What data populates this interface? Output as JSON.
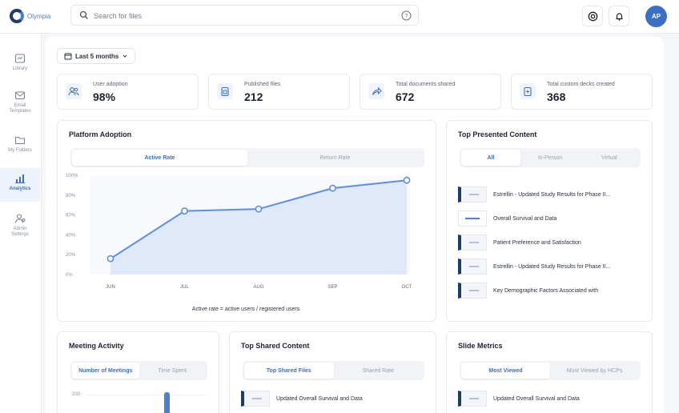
{
  "brand": {
    "name": "Olympia",
    "accent": "#3b6fc4"
  },
  "search": {
    "placeholder": "Search for files"
  },
  "user": {
    "initials": "AP"
  },
  "sidebar": {
    "items": [
      {
        "label": "Library",
        "icon": "library-icon"
      },
      {
        "label": "Email Templates",
        "icon": "mail-icon"
      },
      {
        "label": "My Folders",
        "icon": "folder-icon"
      },
      {
        "label": "Analytics",
        "icon": "analytics-icon",
        "active": true
      },
      {
        "label": "Admin Settings",
        "icon": "admin-icon"
      }
    ]
  },
  "filter": {
    "label": "Last 5 months"
  },
  "stats": [
    {
      "label": "User adoption",
      "value": "98%",
      "icon": "users-icon"
    },
    {
      "label": "Published files",
      "value": "212",
      "icon": "files-icon"
    },
    {
      "label": "Total documents shared",
      "value": "672",
      "icon": "share-icon"
    },
    {
      "label": "Total custom decks created",
      "value": "368",
      "icon": "deck-icon"
    }
  ],
  "platform_adoption": {
    "title": "Platform Adoption",
    "tabs": [
      "Active Rate",
      "Return Rate"
    ],
    "caption": "Active rate = active users / registered users"
  },
  "chart_data": {
    "type": "area",
    "categories": [
      "JUN",
      "JUL",
      "AUG",
      "SEP",
      "OCT"
    ],
    "values": [
      16,
      64,
      66,
      87,
      95
    ],
    "ylim": [
      0,
      100
    ],
    "yticks": [
      "0%",
      "20%",
      "40%",
      "60%",
      "80%",
      "100%"
    ],
    "grid": false
  },
  "top_presented": {
    "title": "Top Presented Content",
    "tabs": [
      "All",
      "In-Person",
      "Virtual"
    ],
    "items": [
      "Estrellin - Updated Study Results for Phase II...",
      "Overall Survival and Data",
      "Patient Preference and Satisfaction",
      "Estrellin - Updated Study Results for Phase II...",
      "Key Demographic Factors Associated with"
    ]
  },
  "meeting_activity": {
    "title": "Meeting Activity",
    "tabs": [
      "Number of Meetings",
      "Time Spent"
    ],
    "axis_top": "200"
  },
  "top_shared": {
    "title": "Top Shared Content",
    "tabs": [
      "Top Shared Files",
      "Shared Rate"
    ],
    "items": [
      "Updated Overall Survival and Data"
    ]
  },
  "slide_metrics": {
    "title": "Slide Metrics",
    "tabs": [
      "Most Viewed",
      "Most Viewed by HCPs"
    ],
    "items": [
      "Updated Overall Survival and Data"
    ]
  }
}
